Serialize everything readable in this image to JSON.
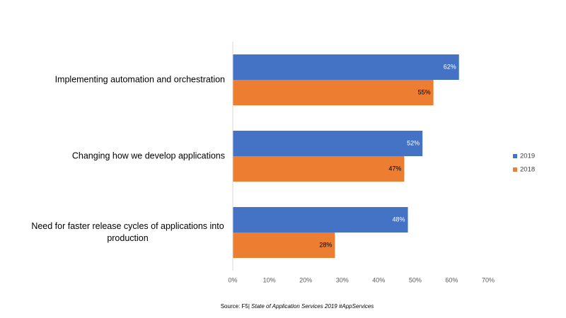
{
  "chart_data": {
    "type": "hbar",
    "categories": [
      "Implementing automation and orchestration",
      "Changing how we develop applications",
      "Need for faster release cycles of applications into production"
    ],
    "series": [
      {
        "name": "2019",
        "color": "#4472c4",
        "values": [
          62,
          52,
          48
        ],
        "value_labels": [
          "62%",
          "52%",
          "48%"
        ]
      },
      {
        "name": "2018",
        "color": "#ed7d31",
        "values": [
          55,
          47,
          28
        ],
        "value_labels": [
          "55%",
          "47%",
          "28%"
        ]
      }
    ],
    "xlim": [
      0,
      70
    ],
    "xticks": [
      {
        "value": 0,
        "label": "0%"
      },
      {
        "value": 10,
        "label": "10%"
      },
      {
        "value": 20,
        "label": "20%"
      },
      {
        "value": 30,
        "label": "30%"
      },
      {
        "value": 40,
        "label": "40%"
      },
      {
        "value": 50,
        "label": "50%"
      },
      {
        "value": 60,
        "label": "60%"
      },
      {
        "value": 70,
        "label": "70%"
      }
    ],
    "source_prefix": "Source: F5|",
    "source_title": "State of Application Services 2019 #AppServices",
    "legend": "right"
  }
}
